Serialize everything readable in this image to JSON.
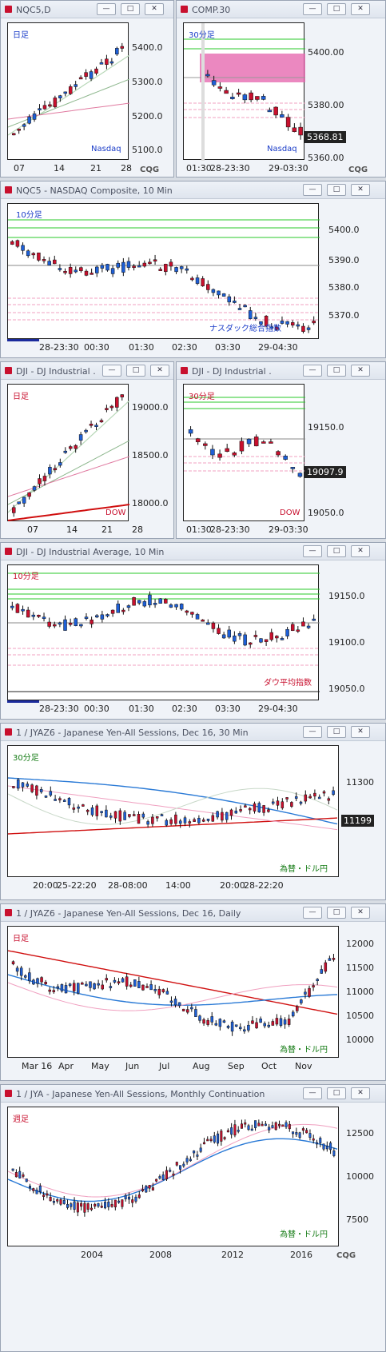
{
  "windows": [
    {
      "id": "w1",
      "title": "NQC5,D",
      "label": "日足",
      "label_color": "blue",
      "footer": "Nasdaq",
      "footer_color": "blue",
      "yticks": [
        "5400.0",
        "5300.0",
        "5200.0",
        "5100.0"
      ],
      "xticks": [
        "07",
        "14",
        "21",
        "28"
      ]
    },
    {
      "id": "w2",
      "title": "COMP.30",
      "label": "30分足",
      "label_color": "blue",
      "footer": "Nasdaq",
      "footer_color": "blue",
      "yticks": [
        "5400.00",
        "5380.00",
        "5360.00"
      ],
      "xticks": [
        "01:30",
        "28-23:30",
        "29-03:30"
      ],
      "price": "5368.81"
    },
    {
      "id": "w3",
      "title": "NQC5 - NASDAQ Composite, 10 Min",
      "label": "10分足",
      "label_color": "blue",
      "footer": "ナスダック総合指数",
      "footer_color": "blue",
      "yticks": [
        "5400.0",
        "5390.0",
        "5380.0",
        "5370.0"
      ],
      "xticks": [
        "28-23:30",
        "00:30",
        "01:30",
        "02:30",
        "03:30",
        "29-04:30"
      ]
    },
    {
      "id": "w4",
      "title": "DJI - DJ Industrial ...",
      "label": "日足",
      "label_color": "red",
      "footer": "DOW",
      "footer_color": "red",
      "yticks": [
        "19000.0",
        "18500.0",
        "18000.0"
      ],
      "xticks": [
        "07",
        "14",
        "21",
        "28"
      ]
    },
    {
      "id": "w5",
      "title": "DJI - DJ Industrial ...",
      "label": "30分足",
      "label_color": "red",
      "footer": "DOW",
      "footer_color": "red",
      "yticks": [
        "19150.0",
        "19050.0"
      ],
      "xticks": [
        "01:30",
        "28-23:30",
        "29-03:30"
      ],
      "price": "19097.9"
    },
    {
      "id": "w6",
      "title": "DJI - DJ Industrial Average, 10 Min",
      "label": "10分足",
      "label_color": "red",
      "footer": "ダウ平均指数",
      "footer_color": "red",
      "yticks": [
        "19150.0",
        "19100.0",
        "19050.0"
      ],
      "xticks": [
        "28-23:30",
        "00:30",
        "01:30",
        "02:30",
        "03:30",
        "29-04:30"
      ]
    },
    {
      "id": "w7",
      "title": "1 / JYAZ6 - Japanese Yen-All Sessions, Dec 16, 30 Min",
      "label": "30分足",
      "label_color": "green",
      "footer": "為替・ドル円",
      "footer_color": "green",
      "yticks": [
        "11300",
        "11199"
      ],
      "xticks": [
        "20:00",
        "25-22:20",
        "28-08:00",
        "14:00",
        "20:00",
        "28-22:20"
      ],
      "price": "11199"
    },
    {
      "id": "w8",
      "title": "1 / JYAZ6 - Japanese Yen-All Sessions, Dec 16, Daily",
      "label": "日足",
      "label_color": "red",
      "footer": "為替・ドル円",
      "footer_color": "green",
      "yticks": [
        "12000",
        "11500",
        "11000",
        "10500",
        "10000"
      ],
      "xticks": [
        "Mar 16",
        "Apr",
        "May",
        "Jun",
        "Jul",
        "Aug",
        "Sep",
        "Oct",
        "Nov"
      ]
    },
    {
      "id": "w9",
      "title": "1 / JYA - Japanese Yen-All Sessions, Monthly Continuation",
      "label": "週足",
      "label_color": "red",
      "footer": "為替・ドル円",
      "footer_color": "green",
      "yticks": [
        "12500",
        "10000",
        "7500"
      ],
      "xticks": [
        "2004",
        "2008",
        "2012",
        "2016"
      ]
    }
  ],
  "buttons": {
    "min": "—",
    "max": "□",
    "close": "✕"
  },
  "logo": "CQG"
}
